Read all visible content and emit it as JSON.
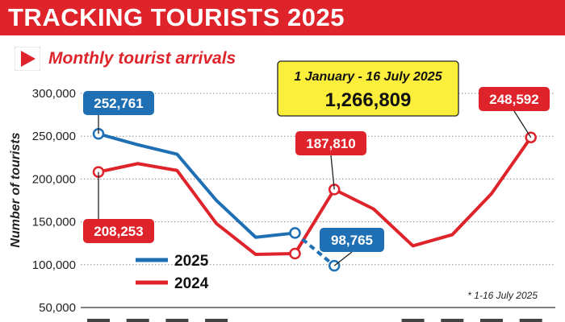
{
  "banner": {
    "title": "TRACKING TOURISTS 2025"
  },
  "subtitle": "Monthly tourist arrivals",
  "total_box": {
    "label": "1 January - 16 July 2025",
    "value": "1,266,809"
  },
  "footnote": "* 1-16 July 2025",
  "colors": {
    "brand_red": "#df232b",
    "series_2025": "#1e6fb3",
    "series_2024": "#df232b",
    "total_box_fill": "#fcef3c"
  },
  "icons": {
    "subtitle": "play-arrow-icon"
  },
  "chart_data": {
    "type": "line",
    "title": "Monthly tourist arrivals",
    "ylabel": "Number of tourists",
    "xlabel": "",
    "ylim": [
      50000,
      300000
    ],
    "yticks": [
      50000,
      100000,
      150000,
      200000,
      250000,
      300000
    ],
    "ytick_labels": [
      "50,000",
      "100,000",
      "150,000",
      "200,000",
      "250,000",
      "300,000"
    ],
    "grid": true,
    "legend_position": "bottom-left",
    "x_label_note": "month labels at the bottom edge are cut off",
    "series": [
      {
        "name": "2025",
        "color": "#1e6fb3",
        "x": [
          1,
          2,
          3,
          4,
          5,
          6
        ],
        "values": [
          252761,
          240000,
          229000,
          175000,
          132000,
          137000
        ],
        "partial_month": {
          "x": 7,
          "value": 98765
        }
      },
      {
        "name": "2024",
        "color": "#df232b",
        "x": [
          1,
          2,
          3,
          4,
          5,
          6,
          7,
          8,
          9,
          10,
          11,
          12
        ],
        "values": [
          208253,
          218000,
          210000,
          148000,
          112000,
          113000,
          187810,
          165000,
          122000,
          135000,
          183000,
          248592
        ]
      }
    ],
    "annotations": [
      {
        "series": "2025",
        "x": 1,
        "label": "252,761"
      },
      {
        "series": "2024",
        "x": 1,
        "label": "208,253"
      },
      {
        "series": "2024",
        "x": 7,
        "label": "187,810"
      },
      {
        "series": "2025",
        "x": 7,
        "label": "98,765"
      },
      {
        "series": "2024",
        "x": 12,
        "label": "248,592"
      }
    ]
  }
}
